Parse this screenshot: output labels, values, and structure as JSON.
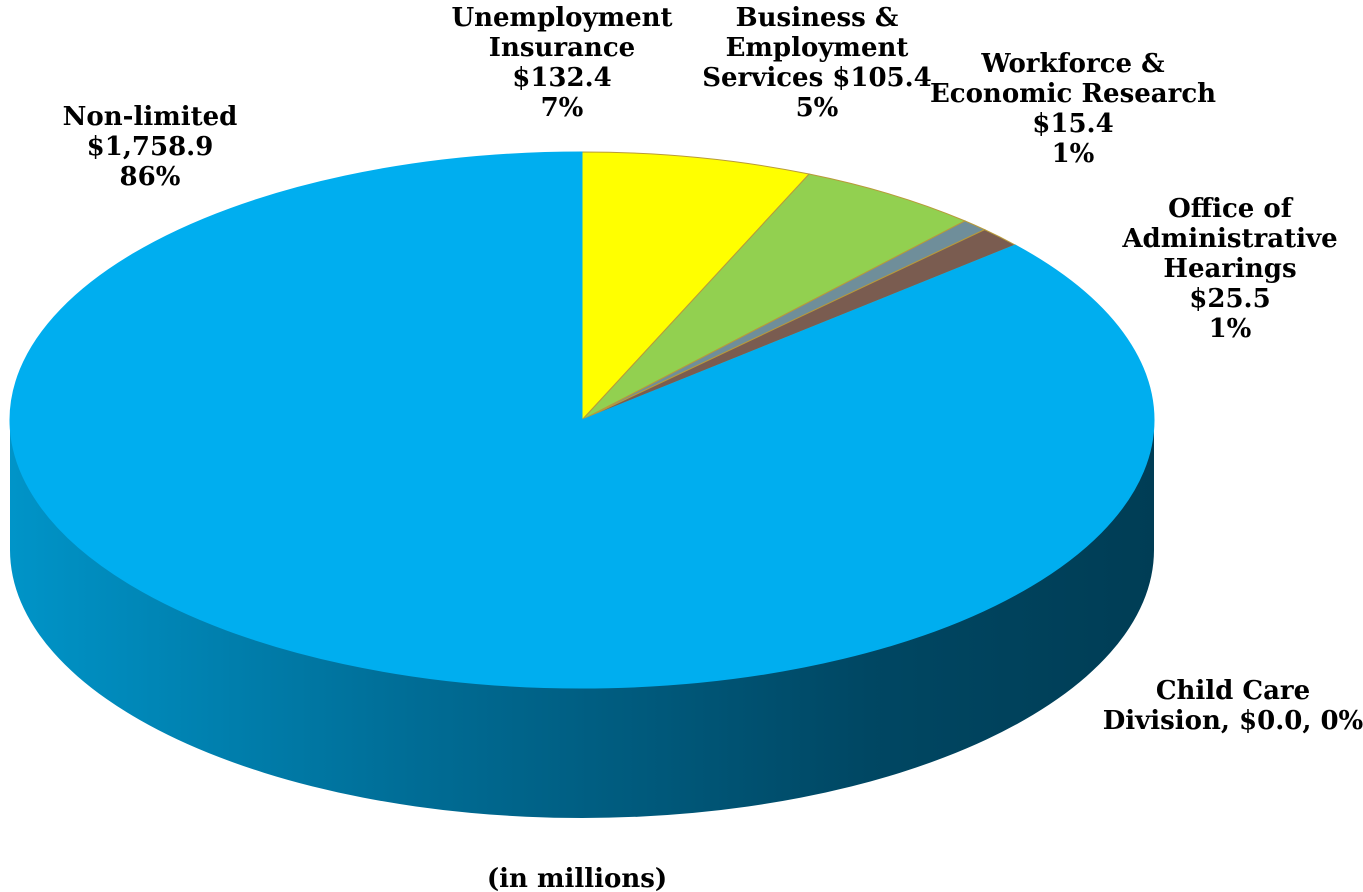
{
  "chart_data": {
    "type": "pie",
    "style": "3d",
    "title": "",
    "units_note": "(in millions)",
    "slices": [
      {
        "name": "Unemployment Insurance",
        "value": 132.4,
        "percent": "7%",
        "amount": "$132.4",
        "label_lines": [
          "Unemployment",
          "Insurance",
          "$132.4",
          "7%"
        ],
        "color": "#FFFF00",
        "side_color": "#C9C900"
      },
      {
        "name": "Business & Employment Services",
        "value": 105.4,
        "percent": "5%",
        "amount": "$105.4",
        "label_lines": [
          "Business &",
          "Employment",
          "Services $105.4",
          "5%"
        ],
        "color": "#92D050",
        "side_color": "#6E9E3C"
      },
      {
        "name": "Workforce & Economic Research",
        "value": 15.4,
        "percent": "1%",
        "amount": "$15.4",
        "label_lines": [
          "Workforce &",
          "Economic Research",
          "$15.4",
          "1%"
        ],
        "color": "#6F8E9A",
        "side_color": "#4E6770"
      },
      {
        "name": "Office of Administrative Hearings",
        "value": 25.5,
        "percent": "1%",
        "amount": "$25.5",
        "label_lines": [
          "Office of",
          "Administrative",
          "Hearings",
          "$25.5",
          "1%"
        ],
        "color": "#7A5C50",
        "side_color": "#57413A"
      },
      {
        "name": "Child Care Division",
        "value": 0.0,
        "percent": "0%",
        "amount": "$0.0",
        "label_lines": [
          "Child Care",
          "Division, $0.0, 0%"
        ],
        "color": "#B0B0B0",
        "side_color": "#808080"
      },
      {
        "name": "Non-limited",
        "value": 1758.9,
        "percent": "86%",
        "amount": "$1,758.9",
        "label_lines": [
          "Non-limited",
          "$1,758.9",
          "86%"
        ],
        "color": "#00AEEF",
        "side_color": "#0085B8"
      }
    ]
  }
}
